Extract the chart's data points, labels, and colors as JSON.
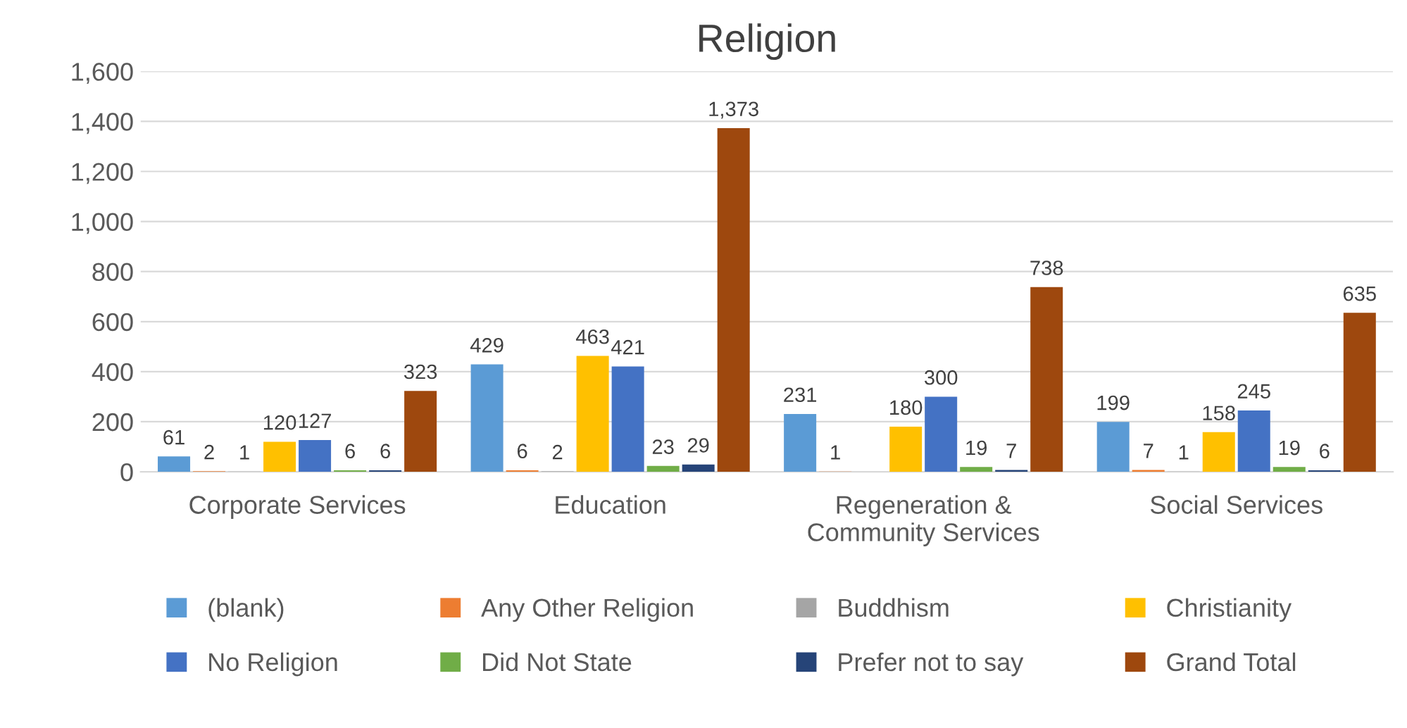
{
  "chart_data": {
    "type": "bar",
    "title": "Religion",
    "categories": [
      "Corporate Services",
      "Education",
      "Regeneration &\nCommunity Services",
      "Social Services"
    ],
    "series": [
      {
        "name": "(blank)",
        "color": "#5b9bd5",
        "values": [
          61,
          429,
          231,
          199
        ],
        "value_labels": [
          "61",
          "429",
          "231",
          "199"
        ]
      },
      {
        "name": "Any Other Religion",
        "color": "#ed7d31",
        "values": [
          2,
          6,
          1,
          7
        ],
        "value_labels": [
          "2",
          "6",
          "1",
          "7"
        ]
      },
      {
        "name": "Buddhism",
        "color": "#a5a5a5",
        "values": [
          1,
          2,
          null,
          1
        ],
        "value_labels": [
          "1",
          "2",
          null,
          "1"
        ]
      },
      {
        "name": "Christianity",
        "color": "#ffc000",
        "values": [
          120,
          463,
          180,
          158
        ],
        "value_labels": [
          "120",
          "463",
          "180",
          "158"
        ]
      },
      {
        "name": "No Religion",
        "color": "#4472c4",
        "values": [
          127,
          421,
          300,
          245
        ],
        "value_labels": [
          "127",
          "421",
          "300",
          "245"
        ]
      },
      {
        "name": "Did Not State",
        "color": "#70ad47",
        "values": [
          6,
          23,
          19,
          19
        ],
        "value_labels": [
          "6",
          "23",
          "19",
          "19"
        ]
      },
      {
        "name": "Prefer not to say",
        "color": "#264478",
        "values": [
          6,
          29,
          7,
          6
        ],
        "value_labels": [
          "6",
          "29",
          "7",
          "6"
        ]
      },
      {
        "name": "Grand Total",
        "color": "#9e480e",
        "values": [
          323,
          1373,
          738,
          635
        ],
        "value_labels": [
          "323",
          "1,373",
          "738",
          "635"
        ]
      }
    ],
    "ylim": [
      0,
      1600
    ],
    "yticks": [
      0,
      200,
      400,
      600,
      800,
      {
        "value": 1000,
        "label": "1,000"
      },
      {
        "value": 1200,
        "label": "1,200"
      },
      {
        "value": 1400,
        "label": "1,400"
      },
      {
        "value": 1600,
        "label": "1,600"
      }
    ],
    "grid": "y",
    "legend": "bottom"
  }
}
